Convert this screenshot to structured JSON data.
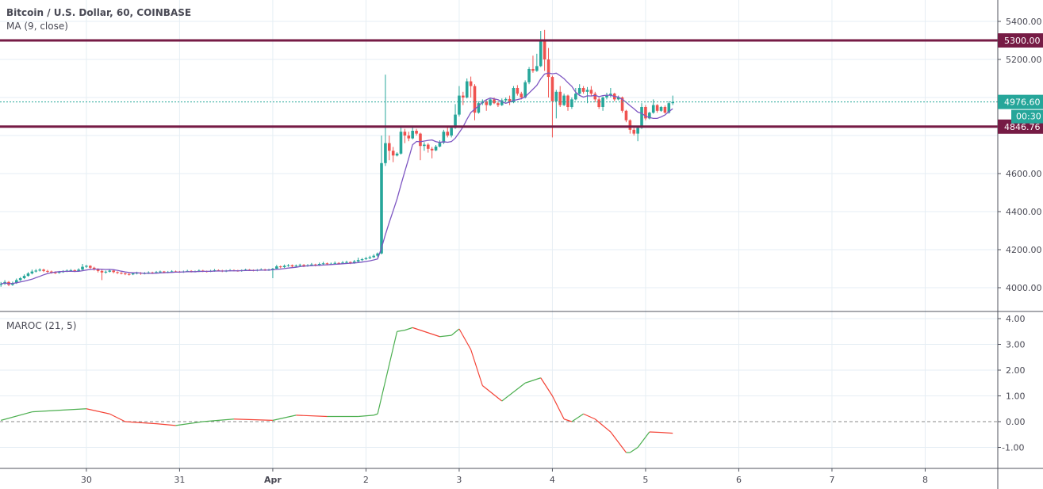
{
  "header": {
    "symbol_title": "Bitcoin / U.S. Dollar, 60, COINBASE",
    "ma_label": "MA (9, close)"
  },
  "indicator": {
    "label": "MAROC (21, 5)"
  },
  "colors": {
    "up": "#26a69a",
    "down": "#ef5350",
    "ma": "#7e57c2",
    "level": "#761b45",
    "last_price": "#26a69a",
    "maroc_up": "#4caf50",
    "maroc_down": "#f44336",
    "grid": "#e6eef4"
  },
  "price_axis": {
    "ticks": [
      "5400.00",
      "5200.00",
      "4600.00",
      "4400.00",
      "4200.00",
      "4000.00"
    ],
    "tick_values": [
      5400,
      5200,
      4600,
      4400,
      4200,
      4000
    ],
    "hidden_ticks": [
      5000,
      4800
    ]
  },
  "levels": [
    {
      "value": 5300,
      "label": "5300.00"
    },
    {
      "value": 4846.76,
      "label": "4846.76"
    }
  ],
  "last_price": {
    "value": 4976.6,
    "label": "4976.60",
    "countdown": "00:30"
  },
  "time_axis": {
    "ticks": [
      "30",
      "31",
      "Apr",
      "2",
      "3",
      "4",
      "5",
      "6",
      "7",
      "8"
    ]
  },
  "maroc_axis": {
    "ticks": [
      "4.00",
      "3.00",
      "2.00",
      "1.00",
      "0.00",
      "-1.00"
    ],
    "tick_values": [
      4,
      3,
      2,
      1,
      0,
      -1
    ]
  },
  "chart_data": [
    {
      "type": "candlestick",
      "title": "Bitcoin / U.S. Dollar, 60, COINBASE",
      "interval": "60",
      "ylim": [
        3950,
        5450
      ],
      "overlay": "MA (9, close)",
      "horizontal_levels": [
        5300,
        4846.76
      ],
      "grid": true,
      "candles_ohlc": [
        [
          4015,
          4030,
          4005,
          4020
        ],
        [
          4020,
          4040,
          4015,
          4030
        ],
        [
          4030,
          4035,
          4008,
          4015
        ],
        [
          4015,
          4032,
          4010,
          4025
        ],
        [
          4025,
          4048,
          4020,
          4040
        ],
        [
          4040,
          4056,
          4035,
          4050
        ],
        [
          4050,
          4070,
          4045,
          4062
        ],
        [
          4062,
          4082,
          4058,
          4075
        ],
        [
          4075,
          4095,
          4070,
          4085
        ],
        [
          4085,
          4098,
          4080,
          4090
        ],
        [
          4090,
          4102,
          4085,
          4095
        ],
        [
          4095,
          4100,
          4082,
          4088
        ],
        [
          4088,
          4094,
          4078,
          4085
        ],
        [
          4085,
          4090,
          4074,
          4080
        ],
        [
          4080,
          4086,
          4072,
          4078
        ],
        [
          4078,
          4088,
          4074,
          4082
        ],
        [
          4082,
          4092,
          4078,
          4086
        ],
        [
          4086,
          4096,
          4082,
          4090
        ],
        [
          4090,
          4098,
          4086,
          4092
        ],
        [
          4092,
          4096,
          4082,
          4088
        ],
        [
          4088,
          4102,
          4084,
          4095
        ],
        [
          4095,
          4125,
          4090,
          4110
        ],
        [
          4110,
          4120,
          4104,
          4115
        ],
        [
          4115,
          4118,
          4098,
          4105
        ],
        [
          4105,
          4110,
          4090,
          4098
        ],
        [
          4098,
          4102,
          4080,
          4088
        ],
        [
          4088,
          4094,
          4040,
          4080
        ],
        [
          4080,
          4090,
          4074,
          4084
        ],
        [
          4084,
          4096,
          4080,
          4090
        ],
        [
          4090,
          4094,
          4076,
          4082
        ],
        [
          4082,
          4086,
          4072,
          4078
        ],
        [
          4078,
          4082,
          4070,
          4075
        ],
        [
          4075,
          4080,
          4066,
          4072
        ],
        [
          4072,
          4076,
          4064,
          4070
        ],
        [
          4070,
          4080,
          4066,
          4075
        ],
        [
          4075,
          4084,
          4070,
          4078
        ],
        [
          4078,
          4082,
          4068,
          4074
        ],
        [
          4074,
          4082,
          4070,
          4076
        ],
        [
          4076,
          4086,
          4072,
          4080
        ],
        [
          4080,
          4084,
          4072,
          4078
        ],
        [
          4078,
          4088,
          4074,
          4082
        ],
        [
          4082,
          4090,
          4078,
          4085
        ],
        [
          4085,
          4088,
          4076,
          4080
        ],
        [
          4080,
          4088,
          4076,
          4083
        ],
        [
          4083,
          4092,
          4080,
          4086
        ],
        [
          4086,
          4090,
          4080,
          4084
        ],
        [
          4084,
          4088,
          4078,
          4082
        ],
        [
          4082,
          4090,
          4078,
          4085
        ],
        [
          4085,
          4094,
          4082,
          4088
        ],
        [
          4088,
          4092,
          4080,
          4084
        ],
        [
          4084,
          4090,
          4080,
          4086
        ],
        [
          4086,
          4096,
          4082,
          4090
        ],
        [
          4090,
          4094,
          4082,
          4087
        ],
        [
          4087,
          4090,
          4080,
          4085
        ],
        [
          4085,
          4094,
          4082,
          4088
        ],
        [
          4088,
          4098,
          4084,
          4092
        ],
        [
          4092,
          4096,
          4086,
          4090
        ],
        [
          4090,
          4094,
          4082,
          4086
        ],
        [
          4086,
          4094,
          4082,
          4089
        ],
        [
          4089,
          4098,
          4086,
          4092
        ],
        [
          4092,
          4096,
          4086,
          4090
        ],
        [
          4090,
          4094,
          4084,
          4088
        ],
        [
          4088,
          4096,
          4084,
          4092
        ],
        [
          4092,
          4100,
          4088,
          4095
        ],
        [
          4095,
          4098,
          4088,
          4093
        ],
        [
          4093,
          4096,
          4086,
          4090
        ],
        [
          4090,
          4098,
          4086,
          4094
        ],
        [
          4094,
          4102,
          4090,
          4096
        ],
        [
          4096,
          4100,
          4088,
          4092
        ],
        [
          4092,
          4100,
          4088,
          4095
        ],
        [
          4095,
          4104,
          4050,
          4100
        ],
        [
          4100,
          4120,
          4096,
          4112
        ],
        [
          4112,
          4116,
          4102,
          4108
        ],
        [
          4108,
          4122,
          4104,
          4115
        ],
        [
          4115,
          4124,
          4110,
          4118
        ],
        [
          4118,
          4122,
          4106,
          4112
        ],
        [
          4112,
          4122,
          4108,
          4116
        ],
        [
          4116,
          4126,
          4112,
          4120
        ],
        [
          4120,
          4124,
          4108,
          4114
        ],
        [
          4114,
          4124,
          4110,
          4118
        ],
        [
          4118,
          4130,
          4114,
          4122
        ],
        [
          4122,
          4126,
          4112,
          4118
        ],
        [
          4118,
          4132,
          4114,
          4125
        ],
        [
          4125,
          4136,
          4120,
          4128
        ],
        [
          4128,
          4132,
          4118,
          4124
        ],
        [
          4124,
          4132,
          4120,
          4126
        ],
        [
          4126,
          4138,
          4122,
          4130
        ],
        [
          4130,
          4134,
          4122,
          4127
        ],
        [
          4127,
          4140,
          4124,
          4132
        ],
        [
          4132,
          4142,
          4128,
          4135
        ],
        [
          4135,
          4138,
          4124,
          4130
        ],
        [
          4130,
          4146,
          4126,
          4138
        ],
        [
          4138,
          4158,
          4134,
          4145
        ],
        [
          4145,
          4156,
          4140,
          4150
        ],
        [
          4150,
          4162,
          4146,
          4155
        ],
        [
          4155,
          4168,
          4150,
          4160
        ],
        [
          4160,
          4176,
          4156,
          4168
        ],
        [
          4168,
          4185,
          4160,
          4180
        ],
        [
          4180,
          4800,
          4175,
          4655
        ],
        [
          4655,
          5120,
          4640,
          4760
        ],
        [
          4760,
          4800,
          4670,
          4720
        ],
        [
          4720,
          4740,
          4660,
          4695
        ],
        [
          4695,
          4712,
          4690,
          4705
        ],
        [
          4705,
          4850,
          4700,
          4820
        ],
        [
          4820,
          4835,
          4760,
          4800
        ],
        [
          4800,
          4820,
          4770,
          4785
        ],
        [
          4785,
          4850,
          4780,
          4825
        ],
        [
          4825,
          4835,
          4800,
          4810
        ],
        [
          4810,
          4815,
          4670,
          4745
        ],
        [
          4745,
          4765,
          4720,
          4752
        ],
        [
          4752,
          4760,
          4710,
          4730
        ],
        [
          4730,
          4740,
          4680,
          4722
        ],
        [
          4722,
          4750,
          4718,
          4742
        ],
        [
          4742,
          4775,
          4738,
          4762
        ],
        [
          4762,
          4830,
          4755,
          4820
        ],
        [
          4820,
          4850,
          4790,
          4800
        ],
        [
          4800,
          4850,
          4790,
          4840
        ],
        [
          4840,
          4965,
          4835,
          4910
        ],
        [
          4910,
          5060,
          4900,
          5010
        ],
        [
          5010,
          5030,
          4960,
          5000
        ],
        [
          5000,
          5100,
          4995,
          5085
        ],
        [
          5085,
          5110,
          5000,
          5060
        ],
        [
          5060,
          5070,
          4880,
          4920
        ],
        [
          4920,
          4980,
          4915,
          4970
        ],
        [
          4970,
          4990,
          4960,
          4980
        ],
        [
          4980,
          4990,
          4930,
          4960
        ],
        [
          4960,
          4995,
          4955,
          4990
        ],
        [
          4990,
          5000,
          4965,
          4970
        ],
        [
          4970,
          4980,
          4950,
          4960
        ],
        [
          4960,
          4995,
          4955,
          4985
        ],
        [
          4985,
          5000,
          4975,
          4992
        ],
        [
          4992,
          5010,
          4960,
          4975
        ],
        [
          4975,
          5060,
          4970,
          5050
        ],
        [
          5050,
          5065,
          5010,
          5020
        ],
        [
          5020,
          5030,
          4990,
          5000
        ],
        [
          5000,
          5090,
          4995,
          5080
        ],
        [
          5080,
          5160,
          5070,
          5150
        ],
        [
          5150,
          5220,
          5130,
          5140
        ],
        [
          5140,
          5230,
          5135,
          5165
        ],
        [
          5165,
          5350,
          5160,
          5300
        ],
        [
          5300,
          5355,
          5140,
          5200
        ],
        [
          5200,
          5260,
          5000,
          5108
        ],
        [
          5108,
          5115,
          4790,
          4980
        ],
        [
          4980,
          5040,
          4890,
          5030
        ],
        [
          5030,
          5060,
          4950,
          4960
        ],
        [
          4960,
          5020,
          4955,
          5010
        ],
        [
          5010,
          5015,
          4930,
          4950
        ],
        [
          4950,
          5000,
          4940,
          4990
        ],
        [
          4990,
          5050,
          4985,
          5020
        ],
        [
          5020,
          5070,
          5015,
          5050
        ],
        [
          5050,
          5060,
          5020,
          5030
        ],
        [
          5030,
          5055,
          4970,
          5040
        ],
        [
          5040,
          5060,
          5010,
          5020
        ],
        [
          5020,
          5030,
          4975,
          4990
        ],
        [
          4990,
          5000,
          4940,
          4950
        ],
        [
          4950,
          5005,
          4930,
          5000
        ],
        [
          5000,
          5025,
          4990,
          5010
        ],
        [
          5010,
          5050,
          5000,
          5020
        ],
        [
          5020,
          5025,
          4980,
          4990
        ],
        [
          4990,
          5010,
          4985,
          5000
        ],
        [
          5000,
          5005,
          4920,
          4930
        ],
        [
          4930,
          4935,
          4870,
          4880
        ],
        [
          4880,
          4885,
          4810,
          4830
        ],
        [
          4830,
          4840,
          4800,
          4810
        ],
        [
          4810,
          4845,
          4770,
          4840
        ],
        [
          4840,
          4970,
          4835,
          4950
        ],
        [
          4950,
          4960,
          4880,
          4890
        ],
        [
          4890,
          4925,
          4885,
          4920
        ],
        [
          4920,
          4990,
          4915,
          4960
        ],
        [
          4960,
          4965,
          4920,
          4930
        ],
        [
          4930,
          4955,
          4925,
          4950
        ],
        [
          4950,
          4958,
          4915,
          4920
        ],
        [
          4920,
          4980,
          4915,
          4970
        ],
        [
          4970,
          5010,
          4960,
          4976.6
        ]
      ]
    },
    {
      "type": "line",
      "title": "MAROC (21, 5)",
      "ylim": [
        -1.75,
        4.2
      ],
      "reference_line": 0,
      "points_bar_value": [
        [
          0,
          0.05
        ],
        [
          8,
          0.38
        ],
        [
          16,
          0.45
        ],
        [
          22,
          0.5
        ],
        [
          28,
          0.3
        ],
        [
          32,
          0.0
        ],
        [
          40,
          -0.08
        ],
        [
          45,
          -0.15
        ],
        [
          52,
          0
        ],
        [
          60,
          0.1
        ],
        [
          70,
          0.05
        ],
        [
          76,
          0.25
        ],
        [
          84,
          0.2
        ],
        [
          92,
          0.2
        ],
        [
          96,
          0.25
        ],
        [
          97,
          0.3
        ],
        [
          102,
          3.5
        ],
        [
          104,
          3.55
        ],
        [
          106,
          3.65
        ],
        [
          110,
          3.45
        ],
        [
          113,
          3.3
        ],
        [
          116,
          3.35
        ],
        [
          118,
          3.6
        ],
        [
          121,
          2.8
        ],
        [
          124,
          1.4
        ],
        [
          129,
          0.8
        ],
        [
          135,
          1.5
        ],
        [
          139,
          1.7
        ],
        [
          142,
          1.0
        ],
        [
          145,
          0.1
        ],
        [
          147,
          0.0
        ],
        [
          150,
          0.3
        ],
        [
          153,
          0.1
        ],
        [
          157,
          -0.4
        ],
        [
          161,
          -1.2
        ],
        [
          162,
          -1.2
        ],
        [
          164,
          -1.0
        ],
        [
          167,
          -0.4
        ],
        [
          170,
          -0.42
        ],
        [
          173,
          -0.45
        ]
      ]
    }
  ]
}
